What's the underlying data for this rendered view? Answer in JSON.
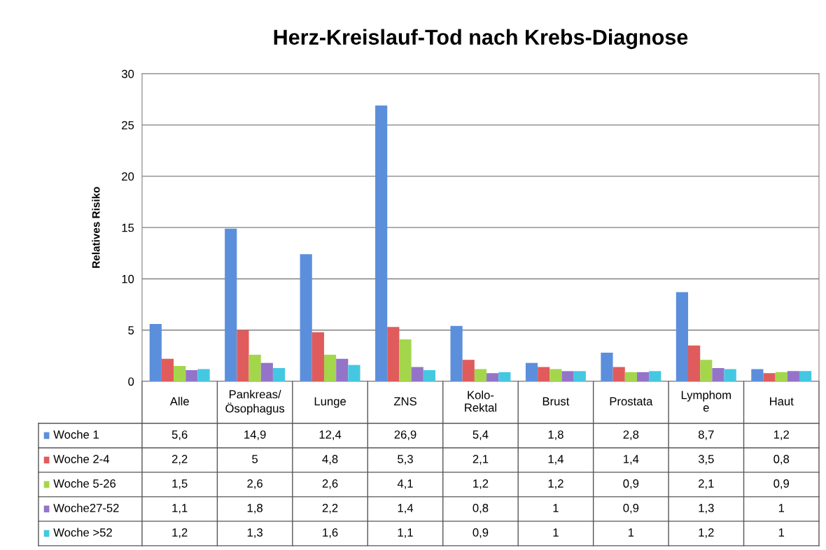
{
  "chart_data": {
    "type": "bar",
    "title": "Herz-Kreislauf-Tod nach Krebs-Diagnose",
    "ylabel": "Relatives Risiko",
    "categories": [
      "Alle",
      "Pankreas/\nÖsophagus",
      "Lunge",
      "ZNS",
      "Kolo-\nRektal",
      "Brust",
      "Prostata",
      "Lymphom\ne",
      "Haut"
    ],
    "series": [
      {
        "name": "Woche 1",
        "color": "#5b8fdc",
        "values": [
          5.6,
          14.9,
          12.4,
          26.9,
          5.4,
          1.8,
          2.8,
          8.7,
          1.2
        ],
        "value_labels": [
          "5,6",
          "14,9",
          "12,4",
          "26,9",
          "5,4",
          "1,8",
          "2,8",
          "8,7",
          "1,2"
        ]
      },
      {
        "name": "Woche 2-4",
        "color": "#e05c5c",
        "values": [
          2.2,
          5,
          4.8,
          5.3,
          2.1,
          1.4,
          1.4,
          3.5,
          0.8
        ],
        "value_labels": [
          "2,2",
          "5",
          "4,8",
          "5,3",
          "2,1",
          "1,4",
          "1,4",
          "3,5",
          "0,8"
        ]
      },
      {
        "name": "Woche 5-26",
        "color": "#a4d64c",
        "values": [
          1.5,
          2.6,
          2.6,
          4.1,
          1.2,
          1.2,
          0.9,
          2.1,
          0.9
        ],
        "value_labels": [
          "1,5",
          "2,6",
          "2,6",
          "4,1",
          "1,2",
          "1,2",
          "0,9",
          "2,1",
          "0,9"
        ]
      },
      {
        "name": "Woche27-52",
        "color": "#9474c8",
        "values": [
          1.1,
          1.8,
          2.2,
          1.4,
          0.8,
          1,
          0.9,
          1.3,
          1
        ],
        "value_labels": [
          "1,1",
          "1,8",
          "2,2",
          "1,4",
          "0,8",
          "1",
          "0,9",
          "1,3",
          "1"
        ]
      },
      {
        "name": "Woche >52",
        "color": "#44c8e2",
        "values": [
          1.2,
          1.3,
          1.6,
          1.1,
          0.9,
          1,
          1,
          1.2,
          1
        ],
        "value_labels": [
          "1,2",
          "1,3",
          "1,6",
          "1,1",
          "0,9",
          "1",
          "1",
          "1,2",
          "1"
        ]
      }
    ],
    "ylim": [
      0,
      30
    ],
    "yticks": [
      0,
      5,
      10,
      15,
      20,
      25,
      30
    ],
    "grid": "y",
    "legend": "bottom left"
  }
}
